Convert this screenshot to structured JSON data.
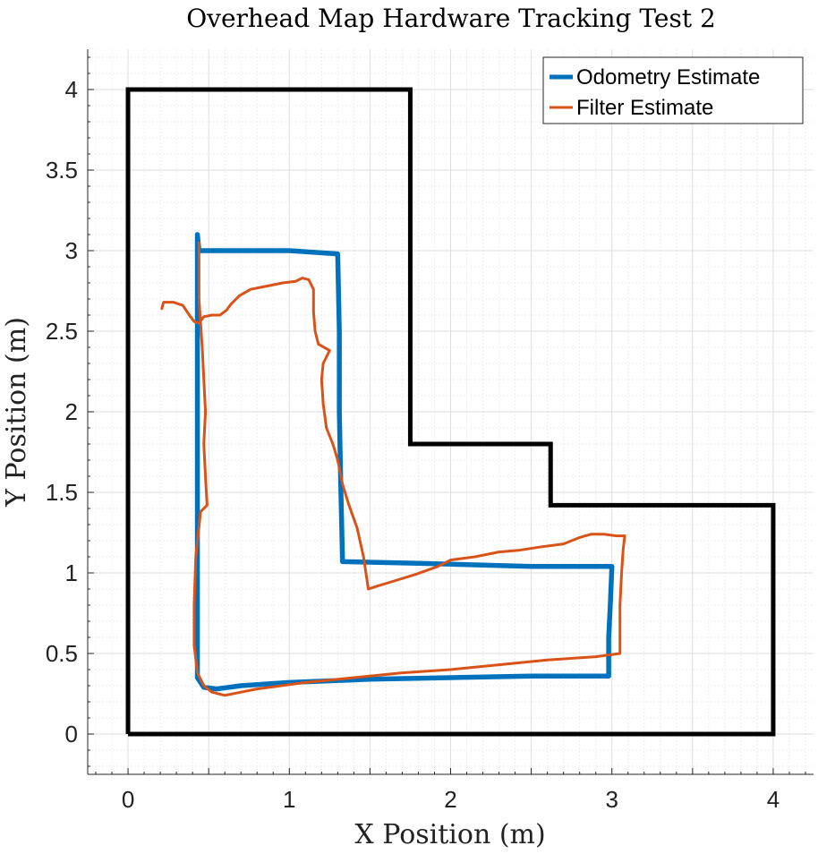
{
  "chart_data": {
    "type": "line",
    "title": "Overhead Map Hardware Tracking Test 2",
    "xlabel": "X Position (m)",
    "ylabel": "Y Position (m)",
    "xlim": [
      -0.25,
      4.25
    ],
    "ylim": [
      -0.25,
      4.25
    ],
    "xticks": [
      "0",
      "1",
      "2",
      "3",
      "4"
    ],
    "yticks": [
      "0",
      "0.5",
      "1",
      "1.5",
      "2",
      "2.5",
      "3",
      "3.5",
      "4"
    ],
    "grid": true,
    "legend_position": "top-right",
    "map_boundary": {
      "color": "#000000",
      "points": [
        [
          0,
          0
        ],
        [
          0,
          4
        ],
        [
          1.75,
          4
        ],
        [
          1.75,
          1.8
        ],
        [
          2.62,
          1.8
        ],
        [
          2.62,
          1.42
        ],
        [
          4,
          1.42
        ],
        [
          4,
          0
        ],
        [
          0,
          0
        ]
      ]
    },
    "series": [
      {
        "name": "Odometry Estimate",
        "color": "#0072BD",
        "points": [
          [
            0.43,
            3.1
          ],
          [
            0.44,
            3.0
          ],
          [
            0.6,
            3.0
          ],
          [
            1.0,
            3.0
          ],
          [
            1.3,
            2.98
          ],
          [
            1.31,
            2.5
          ],
          [
            1.31,
            2.0
          ],
          [
            1.32,
            1.5
          ],
          [
            1.33,
            1.07
          ],
          [
            1.8,
            1.06
          ],
          [
            2.5,
            1.04
          ],
          [
            3.0,
            1.04
          ],
          [
            2.99,
            0.8
          ],
          [
            2.98,
            0.6
          ],
          [
            2.98,
            0.36
          ],
          [
            2.5,
            0.36
          ],
          [
            2.0,
            0.35
          ],
          [
            1.5,
            0.34
          ],
          [
            1.0,
            0.32
          ],
          [
            0.7,
            0.3
          ],
          [
            0.55,
            0.28
          ],
          [
            0.47,
            0.29
          ],
          [
            0.43,
            0.35
          ],
          [
            0.43,
            0.8
          ],
          [
            0.43,
            1.5
          ],
          [
            0.43,
            2.2
          ],
          [
            0.43,
            2.8
          ],
          [
            0.43,
            3.1
          ]
        ]
      },
      {
        "name": "Filter Estimate",
        "color": "#D95319",
        "points": [
          [
            0.21,
            2.64
          ],
          [
            0.22,
            2.68
          ],
          [
            0.28,
            2.68
          ],
          [
            0.34,
            2.66
          ],
          [
            0.38,
            2.6
          ],
          [
            0.41,
            2.56
          ],
          [
            0.44,
            2.55
          ],
          [
            0.47,
            2.59
          ],
          [
            0.52,
            2.6
          ],
          [
            0.57,
            2.6
          ],
          [
            0.61,
            2.63
          ],
          [
            0.64,
            2.67
          ],
          [
            0.69,
            2.72
          ],
          [
            0.76,
            2.76
          ],
          [
            0.86,
            2.78
          ],
          [
            0.96,
            2.8
          ],
          [
            1.04,
            2.81
          ],
          [
            1.08,
            2.83
          ],
          [
            1.12,
            2.82
          ],
          [
            1.15,
            2.76
          ],
          [
            1.15,
            2.62
          ],
          [
            1.16,
            2.5
          ],
          [
            1.18,
            2.42
          ],
          [
            1.25,
            2.38
          ],
          [
            1.21,
            2.3
          ],
          [
            1.2,
            2.2
          ],
          [
            1.21,
            2.05
          ],
          [
            1.23,
            1.9
          ],
          [
            1.27,
            1.8
          ],
          [
            1.3,
            1.7
          ],
          [
            1.33,
            1.55
          ],
          [
            1.37,
            1.42
          ],
          [
            1.42,
            1.28
          ],
          [
            1.46,
            1.1
          ],
          [
            1.49,
            0.9
          ],
          [
            1.55,
            0.92
          ],
          [
            1.65,
            0.95
          ],
          [
            1.78,
            0.99
          ],
          [
            1.92,
            1.04
          ],
          [
            2.0,
            1.08
          ],
          [
            2.15,
            1.1
          ],
          [
            2.3,
            1.13
          ],
          [
            2.42,
            1.14
          ],
          [
            2.55,
            1.16
          ],
          [
            2.7,
            1.18
          ],
          [
            2.8,
            1.22
          ],
          [
            2.87,
            1.24
          ],
          [
            2.95,
            1.24
          ],
          [
            3.03,
            1.23
          ],
          [
            3.08,
            1.23
          ],
          [
            3.07,
            1.15
          ],
          [
            3.06,
            1.0
          ],
          [
            3.05,
            0.8
          ],
          [
            3.05,
            0.6
          ],
          [
            3.05,
            0.5
          ],
          [
            2.9,
            0.48
          ],
          [
            2.6,
            0.46
          ],
          [
            2.3,
            0.43
          ],
          [
            2.0,
            0.4
          ],
          [
            1.7,
            0.38
          ],
          [
            1.4,
            0.35
          ],
          [
            1.1,
            0.32
          ],
          [
            0.8,
            0.28
          ],
          [
            0.6,
            0.24
          ],
          [
            0.52,
            0.26
          ],
          [
            0.47,
            0.3
          ],
          [
            0.43,
            0.38
          ],
          [
            0.41,
            0.55
          ],
          [
            0.41,
            0.8
          ],
          [
            0.42,
            1.1
          ],
          [
            0.45,
            1.38
          ],
          [
            0.49,
            1.42
          ],
          [
            0.48,
            1.6
          ],
          [
            0.47,
            1.8
          ],
          [
            0.48,
            2.0
          ],
          [
            0.47,
            2.2
          ],
          [
            0.46,
            2.4
          ],
          [
            0.45,
            2.55
          ],
          [
            0.44,
            2.7
          ],
          [
            0.44,
            2.9
          ],
          [
            0.44,
            3.05
          ]
        ]
      }
    ]
  }
}
